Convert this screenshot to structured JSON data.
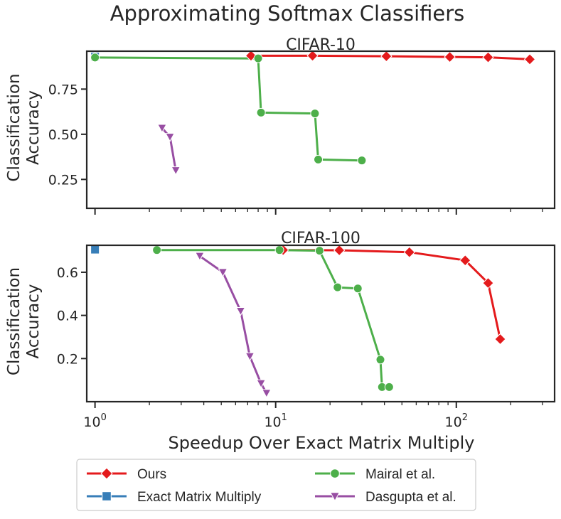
{
  "figure": {
    "suptitle": "Approximating Softmax Classifiers",
    "xlabel": "Speedup Over Exact Matrix Multiply"
  },
  "colors": {
    "ours": "#e41a1c",
    "exact": "#377eb8",
    "mairal": "#4daf4a",
    "dasgupta": "#984ea3",
    "axis": "#262626"
  },
  "legend": {
    "entries": [
      {
        "key": "ours",
        "label": "Ours",
        "marker": "diamond"
      },
      {
        "key": "mairal",
        "label": "Mairal et al.",
        "marker": "circle"
      },
      {
        "key": "exact",
        "label": "Exact Matrix Multiply",
        "marker": "square"
      },
      {
        "key": "dasgupta",
        "label": "Dasgupta et al.",
        "marker": "triangle-down"
      }
    ]
  },
  "chart_data": [
    {
      "type": "line",
      "title": "CIFAR-10",
      "xlabel": "",
      "ylabel_lines": [
        "Classification",
        "Accuracy"
      ],
      "xscale": "log",
      "xlim": [
        0.9,
        350
      ],
      "ylim": [
        0.09,
        0.96
      ],
      "yticks": [
        0.25,
        0.5,
        0.75
      ],
      "ytick_labels": [
        "0.25",
        "0.50",
        "0.75"
      ],
      "show_x_tick_labels": false,
      "series": [
        {
          "key": "ours",
          "name": "Ours",
          "marker": "diamond",
          "x": [
            7.3,
            16,
            41,
            92,
            150,
            255
          ],
          "y": [
            0.935,
            0.935,
            0.932,
            0.928,
            0.926,
            0.915
          ]
        },
        {
          "key": "exact",
          "name": "Exact Matrix Multiply",
          "marker": "square",
          "x": [
            1.0
          ],
          "y": [
            0.93
          ]
        },
        {
          "key": "mairal",
          "name": "Mairal et al.",
          "marker": "circle",
          "x": [
            1.0,
            8.0,
            8.3,
            16.5,
            17.2,
            30
          ],
          "y": [
            0.925,
            0.92,
            0.62,
            0.615,
            0.36,
            0.355
          ]
        },
        {
          "key": "dasgupta",
          "name": "Dasgupta et al.",
          "marker": "triangle-down",
          "x": [
            2.35,
            2.6,
            2.8
          ],
          "y": [
            0.535,
            0.485,
            0.3
          ]
        }
      ]
    },
    {
      "type": "line",
      "title": "CIFAR-100",
      "xlabel": "Speedup Over Exact Matrix Multiply",
      "ylabel_lines": [
        "Classification",
        "Accuracy"
      ],
      "xscale": "log",
      "xlim": [
        0.9,
        350
      ],
      "ylim": [
        0.0,
        0.725
      ],
      "yticks": [
        0.2,
        0.4,
        0.6
      ],
      "ytick_labels": [
        "0.2",
        "0.4",
        "0.6"
      ],
      "show_x_tick_labels": true,
      "xtick_labels": [
        {
          "base": "10",
          "exp": "0"
        },
        {
          "base": "10",
          "exp": "1"
        },
        {
          "base": "10",
          "exp": "2"
        }
      ],
      "series": [
        {
          "key": "ours",
          "name": "Ours",
          "marker": "diamond",
          "x": [
            11,
            22.5,
            55,
            112,
            150,
            175
          ],
          "y": [
            0.703,
            0.702,
            0.693,
            0.655,
            0.55,
            0.29
          ]
        },
        {
          "key": "exact",
          "name": "Exact Matrix Multiply",
          "marker": "square",
          "x": [
            1.0
          ],
          "y": [
            0.705
          ]
        },
        {
          "key": "mairal",
          "name": "Mairal et al.",
          "marker": "circle",
          "x": [
            2.2,
            10.5,
            17.5,
            22,
            28.5,
            38,
            38.8,
            42.5
          ],
          "y": [
            0.703,
            0.703,
            0.7,
            0.53,
            0.525,
            0.195,
            0.068,
            0.068
          ]
        },
        {
          "key": "dasgupta",
          "name": "Dasgupta et al.",
          "marker": "triangle-down",
          "x": [
            3.8,
            5.1,
            6.4,
            7.2,
            8.3,
            8.9
          ],
          "y": [
            0.675,
            0.6,
            0.42,
            0.21,
            0.085,
            0.04
          ]
        }
      ]
    }
  ]
}
